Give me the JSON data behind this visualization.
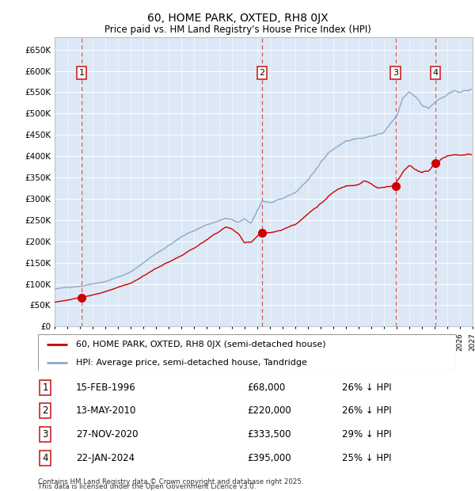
{
  "title": "60, HOME PARK, OXTED, RH8 0JX",
  "subtitle": "Price paid vs. HM Land Registry's House Price Index (HPI)",
  "footer1": "Contains HM Land Registry data © Crown copyright and database right 2025.",
  "footer2": "This data is licensed under the Open Government Licence v3.0.",
  "legend_property": "60, HOME PARK, OXTED, RH8 0JX (semi-detached house)",
  "legend_hpi": "HPI: Average price, semi-detached house, Tandridge",
  "transactions": [
    {
      "num": 1,
      "date": "15-FEB-1996",
      "year": 1996.12,
      "price": 68000,
      "pct": "26% ↓ HPI"
    },
    {
      "num": 2,
      "date": "13-MAY-2010",
      "year": 2010.37,
      "price": 220000,
      "pct": "26% ↓ HPI"
    },
    {
      "num": 3,
      "date": "27-NOV-2020",
      "year": 2020.91,
      "price": 333500,
      "pct": "29% ↓ HPI"
    },
    {
      "num": 4,
      "date": "22-JAN-2024",
      "year": 2024.06,
      "price": 395000,
      "pct": "25% ↓ HPI"
    }
  ],
  "xmin": 1994,
  "xmax": 2027,
  "ymin": 0,
  "ymax": 680000,
  "ytick_vals": [
    0,
    50000,
    100000,
    150000,
    200000,
    250000,
    300000,
    350000,
    400000,
    450000,
    500000,
    550000,
    600000,
    650000
  ],
  "ytick_labels": [
    "£0",
    "£50K",
    "£100K",
    "£150K",
    "£200K",
    "£250K",
    "£300K",
    "£350K",
    "£400K",
    "£450K",
    "£500K",
    "£550K",
    "£600K",
    "£650K"
  ],
  "property_color": "#cc0000",
  "hpi_color": "#88aacc",
  "bg_color": "#dce8f5",
  "grid_color": "#ffffff",
  "vline_color": "#dd4444"
}
